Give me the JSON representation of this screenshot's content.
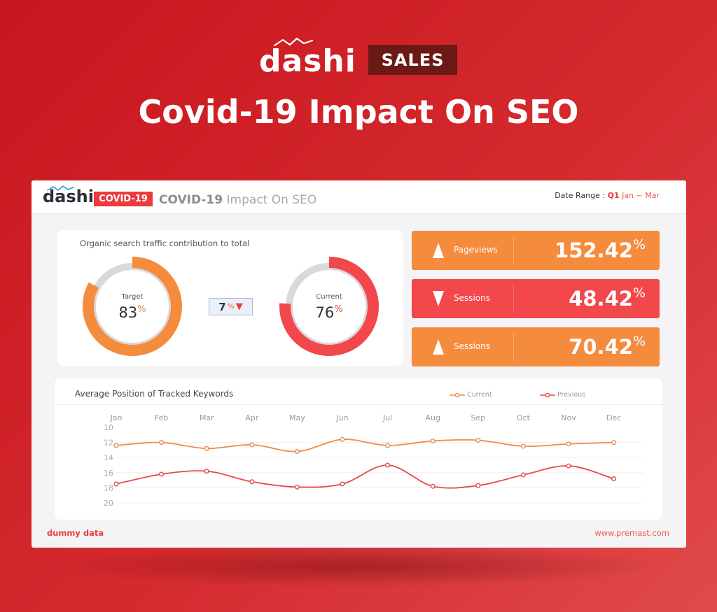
{
  "hero": {
    "logo_text": "dashi",
    "badge": "SALES",
    "title": "Covid-19 Impact On SEO"
  },
  "header": {
    "logo_text": "dashi",
    "badge": "COVID-19",
    "title_bold": "COVID-19",
    "title_rest": " Impact On SEO",
    "date_label": "Date Range : ",
    "date_quarter": "Q1",
    "date_months": " Jan ~ Mar"
  },
  "donuts": {
    "title": "Organic search traffic contribution to total",
    "target": {
      "label": "Target",
      "value": "83",
      "unit": "%",
      "fraction": 0.83
    },
    "current": {
      "label": "Current",
      "value": "76",
      "unit": "%",
      "fraction": 0.76
    },
    "difference": {
      "value": "7",
      "unit": "%",
      "arrow": "▼"
    }
  },
  "kpis": [
    {
      "name": "Pageviews",
      "value": "152.42",
      "unit": "%",
      "direction": "up",
      "color": "#f58b3d"
    },
    {
      "name": "Sessions",
      "value": "48.42",
      "unit": "%",
      "direction": "down",
      "color": "#f2474b"
    },
    {
      "name": "Sessions",
      "value": "70.42",
      "unit": "%",
      "direction": "up",
      "color": "#f58b3d"
    }
  ],
  "chart_data": {
    "type": "line",
    "title": "Average Position of Tracked Keywords",
    "categories": [
      "Jan",
      "Feb",
      "Mar",
      "Apr",
      "May",
      "Jun",
      "Jul",
      "Aug",
      "Sep",
      "Oct",
      "Nov",
      "Dec"
    ],
    "series": [
      {
        "name": "Current",
        "color": "#f08a4a",
        "values": [
          12.4,
          12.0,
          12.8,
          12.3,
          13.2,
          11.6,
          12.4,
          11.8,
          11.7,
          12.5,
          12.2,
          12.0
        ]
      },
      {
        "name": "Previous",
        "color": "#e8484a",
        "values": [
          17.5,
          16.2,
          15.8,
          17.2,
          17.9,
          17.5,
          15.0,
          17.8,
          17.7,
          16.3,
          15.1,
          16.8
        ]
      }
    ],
    "y_ticks": [
      "10",
      "12",
      "14",
      "16",
      "18",
      "20"
    ],
    "ylim": [
      10,
      20
    ],
    "y_inverted": true,
    "grid": true,
    "legend_position": "top-right"
  },
  "footer": {
    "left": "dummy data",
    "right": "www.premast.com"
  },
  "colors": {
    "accent_red": "#ec3a3d",
    "accent_orange": "#f58b3d",
    "ring_gray": "#d9d9dc"
  }
}
